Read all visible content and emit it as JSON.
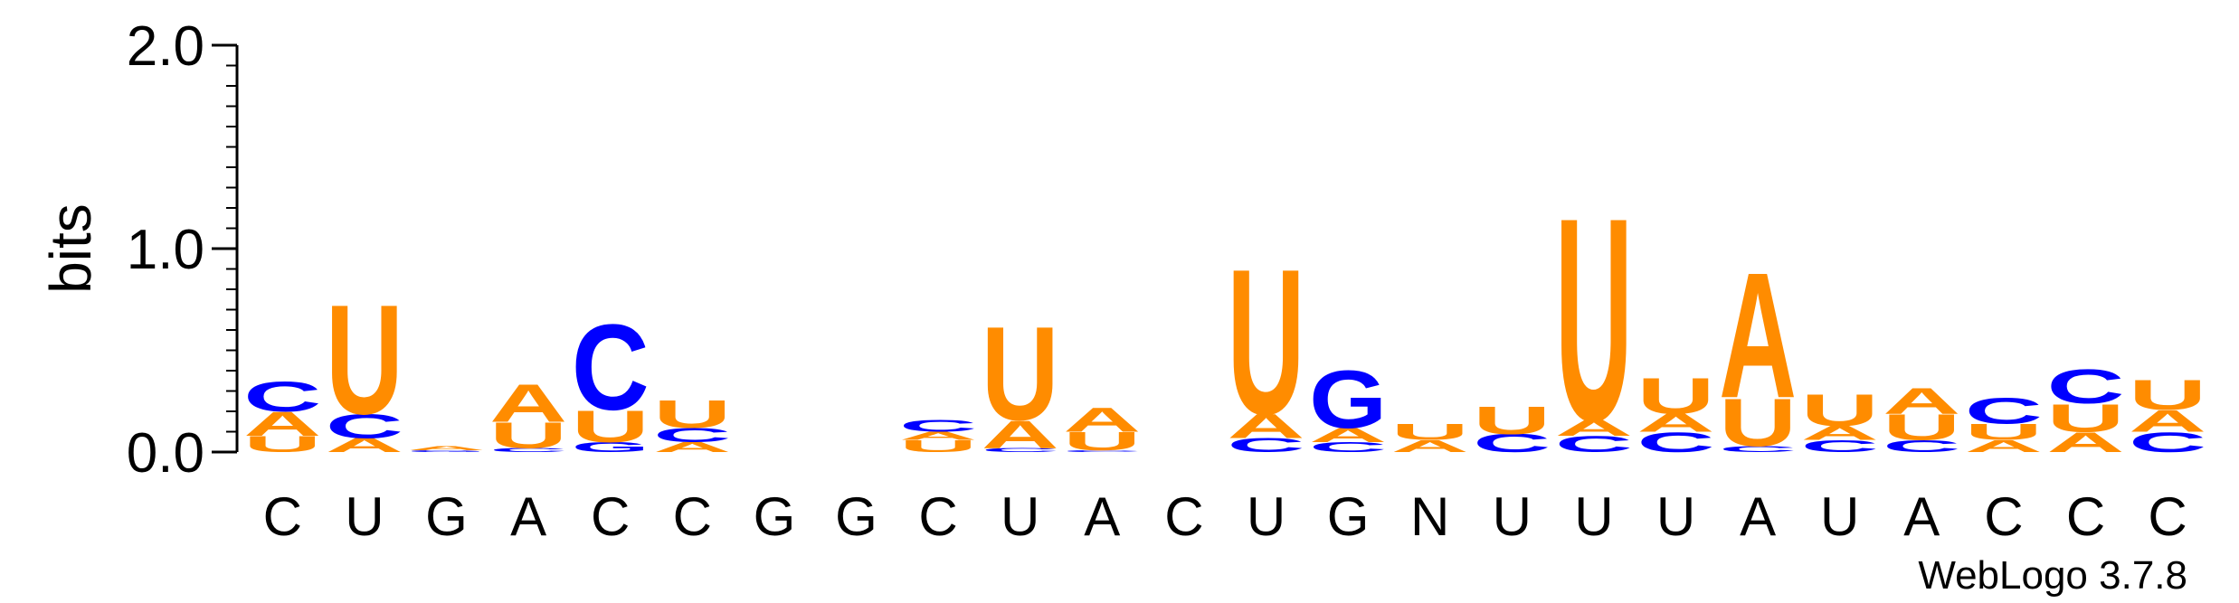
{
  "chart_data": {
    "type": "sequence-logo",
    "ylabel": "bits",
    "ylim": [
      0,
      2
    ],
    "yticks": [
      "0.0",
      "1.0",
      "2.0"
    ],
    "yminor_step": 0.1,
    "credit": "WebLogo 3.7.8",
    "colors": {
      "U": "#ff8c00",
      "A": "#ff8c00",
      "C": "#0000ff",
      "G": "#0000ff",
      "N": "#000000"
    },
    "positions": [
      {
        "label": "C",
        "letters": [
          {
            "l": "U",
            "h": 0.08
          },
          {
            "l": "A",
            "h": 0.12
          },
          {
            "l": "C",
            "h": 0.15
          }
        ]
      },
      {
        "label": "U",
        "letters": [
          {
            "l": "A",
            "h": 0.07
          },
          {
            "l": "C",
            "h": 0.12
          },
          {
            "l": "U",
            "h": 0.55
          }
        ]
      },
      {
        "label": "G",
        "letters": [
          {
            "l": "G",
            "h": 0.01
          },
          {
            "l": "A",
            "h": 0.02
          }
        ]
      },
      {
        "label": "A",
        "letters": [
          {
            "l": "C",
            "h": 0.02
          },
          {
            "l": "U",
            "h": 0.13
          },
          {
            "l": "A",
            "h": 0.19
          }
        ]
      },
      {
        "label": "C",
        "letters": [
          {
            "l": "G",
            "h": 0.05
          },
          {
            "l": "U",
            "h": 0.16
          },
          {
            "l": "C",
            "h": 0.43
          }
        ]
      },
      {
        "label": "C",
        "letters": [
          {
            "l": "A",
            "h": 0.05
          },
          {
            "l": "C",
            "h": 0.07
          },
          {
            "l": "U",
            "h": 0.14
          }
        ]
      },
      {
        "label": "G",
        "letters": []
      },
      {
        "label": "G",
        "letters": []
      },
      {
        "label": "C",
        "letters": [
          {
            "l": "U",
            "h": 0.06
          },
          {
            "l": "A",
            "h": 0.04
          },
          {
            "l": "C",
            "h": 0.06
          }
        ]
      },
      {
        "label": "U",
        "letters": [
          {
            "l": "C",
            "h": 0.02
          },
          {
            "l": "A",
            "h": 0.14
          },
          {
            "l": "U",
            "h": 0.47
          }
        ]
      },
      {
        "label": "A",
        "letters": [
          {
            "l": "C",
            "h": 0.01
          },
          {
            "l": "U",
            "h": 0.09
          },
          {
            "l": "A",
            "h": 0.12
          }
        ]
      },
      {
        "label": "C",
        "letters": []
      },
      {
        "label": "U",
        "letters": [
          {
            "l": "C",
            "h": 0.07
          },
          {
            "l": "A",
            "h": 0.12
          },
          {
            "l": "U",
            "h": 0.73
          }
        ]
      },
      {
        "label": "G",
        "letters": [
          {
            "l": "C",
            "h": 0.05
          },
          {
            "l": "A",
            "h": 0.07
          },
          {
            "l": "G",
            "h": 0.29
          }
        ]
      },
      {
        "label": "N",
        "letters": [
          {
            "l": "A",
            "h": 0.06
          },
          {
            "l": "U",
            "h": 0.08
          }
        ]
      },
      {
        "label": "U",
        "letters": [
          {
            "l": "C",
            "h": 0.09
          },
          {
            "l": "U",
            "h": 0.14
          }
        ]
      },
      {
        "label": "U",
        "letters": [
          {
            "l": "C",
            "h": 0.08
          },
          {
            "l": "A",
            "h": 0.08
          },
          {
            "l": "U",
            "h": 1.02
          }
        ]
      },
      {
        "label": "U",
        "letters": [
          {
            "l": "C",
            "h": 0.1
          },
          {
            "l": "A",
            "h": 0.09
          },
          {
            "l": "U",
            "h": 0.18
          }
        ]
      },
      {
        "label": "A",
        "letters": [
          {
            "l": "C",
            "h": 0.03
          },
          {
            "l": "U",
            "h": 0.24
          },
          {
            "l": "A",
            "h": 0.63
          }
        ]
      },
      {
        "label": "U",
        "letters": [
          {
            "l": "C",
            "h": 0.06
          },
          {
            "l": "A",
            "h": 0.07
          },
          {
            "l": "U",
            "h": 0.16
          }
        ]
      },
      {
        "label": "A",
        "letters": [
          {
            "l": "C",
            "h": 0.06
          },
          {
            "l": "U",
            "h": 0.13
          },
          {
            "l": "A",
            "h": 0.13
          }
        ]
      },
      {
        "label": "C",
        "letters": [
          {
            "l": "A",
            "h": 0.06
          },
          {
            "l": "U",
            "h": 0.08
          },
          {
            "l": "C",
            "h": 0.13
          }
        ]
      },
      {
        "label": "C",
        "letters": [
          {
            "l": "A",
            "h": 0.1
          },
          {
            "l": "U",
            "h": 0.14
          },
          {
            "l": "C",
            "h": 0.17
          }
        ]
      },
      {
        "label": "C",
        "letters": [
          {
            "l": "C",
            "h": 0.1
          },
          {
            "l": "A",
            "h": 0.11
          },
          {
            "l": "U",
            "h": 0.15
          }
        ]
      }
    ]
  }
}
